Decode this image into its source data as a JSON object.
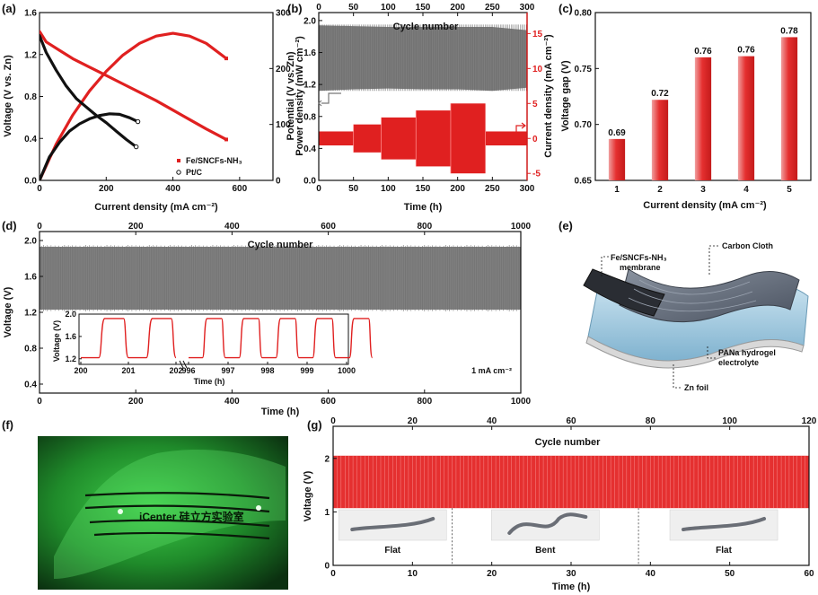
{
  "panels": {
    "a": "(a)",
    "b": "(b)",
    "c": "(c)",
    "d": "(d)",
    "e": "(e)",
    "f": "(f)",
    "g": "(g)"
  },
  "chart_data": [
    {
      "id": "a",
      "type": "line",
      "xlabel": "Current density (mA cm⁻²)",
      "ylabel": "Voltage (V vs. Zn)",
      "y2label": "Power density (mW cm⁻²)",
      "xlim": [
        0,
        700
      ],
      "ylim": [
        0,
        1.6
      ],
      "y2lim": [
        0,
        300
      ],
      "xticks": [
        0,
        200,
        400,
        600
      ],
      "yticks": [
        0.0,
        0.4,
        0.8,
        1.2,
        1.6
      ],
      "y2ticks": [
        0,
        100,
        200,
        300
      ],
      "legend": [
        "Fe/SNCFs-NH₃",
        "Pt/C"
      ],
      "colors": {
        "fe": "#e02020",
        "pt": "#111111"
      },
      "series": [
        {
          "name": "Fe/SNCFs-NH₃",
          "kind": "voltage",
          "x": [
            0,
            20,
            60,
            100,
            150,
            200,
            250,
            300,
            350,
            400,
            450,
            500,
            560
          ],
          "y": [
            1.42,
            1.32,
            1.24,
            1.16,
            1.08,
            1.0,
            0.92,
            0.84,
            0.76,
            0.67,
            0.58,
            0.49,
            0.39
          ]
        },
        {
          "name": "Fe/SNCFs-NH₃",
          "kind": "power",
          "x": [
            0,
            50,
            100,
            150,
            200,
            250,
            300,
            350,
            400,
            450,
            500,
            560
          ],
          "y": [
            0,
            65,
            117,
            160,
            195,
            224,
            245,
            258,
            263,
            258,
            245,
            218
          ]
        },
        {
          "name": "Pt/C",
          "kind": "voltage",
          "x": [
            0,
            20,
            50,
            80,
            110,
            140,
            170,
            200,
            230,
            260,
            290
          ],
          "y": [
            1.38,
            1.22,
            1.05,
            0.9,
            0.78,
            0.7,
            0.62,
            0.55,
            0.47,
            0.39,
            0.32
          ]
        },
        {
          "name": "Pt/C",
          "kind": "power",
          "x": [
            0,
            30,
            60,
            90,
            120,
            150,
            180,
            210,
            240,
            270,
            295
          ],
          "y": [
            0,
            42,
            68,
            88,
            101,
            110,
            116,
            119,
            118,
            112,
            105
          ]
        }
      ]
    },
    {
      "id": "b",
      "type": "area",
      "xlabel": "Time (h)",
      "x2label": "Cycle number",
      "ylabel": "Potential (V vs. Zn)",
      "y2label": "Current density (mA cm⁻²)",
      "xlim": [
        0,
        300
      ],
      "ylim": [
        0,
        2.1
      ],
      "y2lim": [
        -6,
        18
      ],
      "xticks": [
        0,
        50,
        100,
        150,
        200,
        250,
        300
      ],
      "x2ticks": [
        0,
        50,
        100,
        150,
        200,
        250,
        300
      ],
      "yticks": [
        0.0,
        0.4,
        0.8,
        1.2,
        1.6,
        2.0
      ],
      "y2ticks": [
        -5,
        0,
        5,
        10,
        15
      ],
      "voltage_band": {
        "x": [
          0,
          50,
          100,
          150,
          200,
          250,
          300
        ],
        "upper": [
          1.94,
          1.93,
          1.92,
          1.92,
          1.92,
          1.92,
          1.88
        ],
        "lower": [
          1.12,
          1.14,
          1.15,
          1.14,
          1.14,
          1.12,
          1.16
        ]
      },
      "current_steps": [
        {
          "x0": 0,
          "x1": 50,
          "c": 1
        },
        {
          "x0": 50,
          "x1": 90,
          "c": 2
        },
        {
          "x0": 90,
          "x1": 140,
          "c": 3
        },
        {
          "x0": 140,
          "x1": 190,
          "c": 4
        },
        {
          "x0": 190,
          "x1": 240,
          "c": 5
        },
        {
          "x0": 240,
          "x1": 300,
          "c": 1
        }
      ]
    },
    {
      "id": "c",
      "type": "bar",
      "xlabel": "Current density (mA cm⁻²)",
      "ylabel": "Voltage gap (V)",
      "categories": [
        "1",
        "2",
        "3",
        "4",
        "5"
      ],
      "values": [
        0.69,
        0.72,
        0.76,
        0.76,
        0.78
      ],
      "plot_values": [
        0.687,
        0.722,
        0.76,
        0.761,
        0.778
      ],
      "ylim": [
        0.65,
        0.8
      ],
      "yticks": [
        0.65,
        0.7,
        0.75,
        0.8
      ],
      "color": "#e53030"
    },
    {
      "id": "d",
      "type": "area",
      "xlabel": "Time (h)",
      "x2label": "Cycle number",
      "ylabel": "Voltage (V)",
      "xlim": [
        0,
        1000
      ],
      "ylim": [
        0.3,
        2.1
      ],
      "xticks": [
        0,
        200,
        400,
        600,
        800,
        1000
      ],
      "x2ticks": [
        0,
        200,
        400,
        600,
        800,
        1000
      ],
      "yticks": [
        0.4,
        0.8,
        1.2,
        1.6,
        2.0
      ],
      "band": {
        "upper": 1.93,
        "lower": 1.23
      },
      "annotation": "1 mA cm⁻²",
      "inset": {
        "ylabel": "Voltage (V)",
        "xlabel": "Time (h)",
        "yticks": [
          1.2,
          1.6,
          2.0
        ],
        "xticks_left": [
          "200",
          "201",
          "202"
        ],
        "xticks_right": [
          "996",
          "997",
          "998",
          "999",
          "1000"
        ]
      }
    },
    {
      "id": "g",
      "type": "area",
      "xlabel": "Time (h)",
      "x2label": "Cycle number",
      "ylabel": "Voltage (V)",
      "xlim": [
        0,
        60
      ],
      "ylim": [
        0,
        2.6
      ],
      "xticks": [
        0,
        10,
        20,
        30,
        40,
        50,
        60
      ],
      "x2ticks": [
        0,
        20,
        40,
        60,
        80,
        100,
        120
      ],
      "yticks": [
        0,
        1,
        2
      ],
      "band": {
        "upper": 2.05,
        "lower": 1.07
      },
      "dividers": [
        15,
        38.5
      ],
      "states": [
        "Flat",
        "Bent",
        "Flat"
      ]
    }
  ],
  "schematic_e": {
    "membrane": "Fe/SNCFs-NH₃\nmembrane",
    "cloth": "Carbon Cloth",
    "hydrogel": "PANa hydrogel\nelectrolyte",
    "zn": "Zn foil"
  },
  "photo_f": {
    "text": "iCenter 硅立方实验室"
  }
}
